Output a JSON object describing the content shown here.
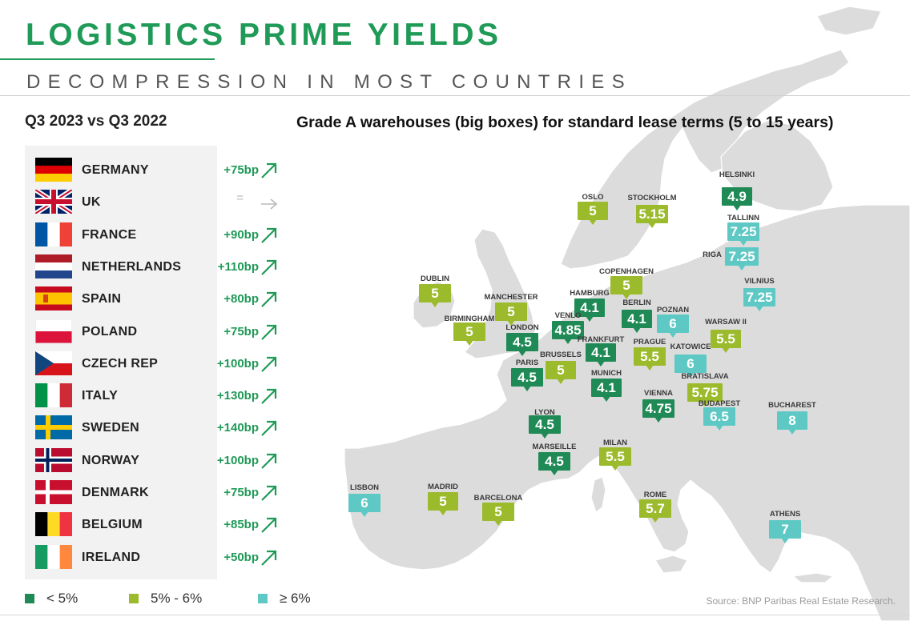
{
  "header": {
    "title": "LOGISTICS PRIME YIELDS",
    "subtitle": "DECOMPRESSION IN MOST COUNTRIES",
    "period": "Q3 2023 vs Q3 2022",
    "map_title": "Grade A warehouses (big boxes) for standard lease terms (5 to 15 years)"
  },
  "colors": {
    "accent": "#1f9a57",
    "below_5": "#1f8a55",
    "between_5_6": "#9bbb2c",
    "above_6": "#5ec9c4",
    "flat": "#b8b8b8"
  },
  "countries": [
    {
      "name": "GERMANY",
      "change": "+75bp",
      "icon": "arrow-up-right-icon",
      "flag": "germany-flag-icon"
    },
    {
      "name": "UK",
      "change": "=",
      "icon": "arrow-right-icon",
      "flag": "uk-flag-icon"
    },
    {
      "name": "FRANCE",
      "change": "+90bp",
      "icon": "arrow-up-right-icon",
      "flag": "france-flag-icon"
    },
    {
      "name": "NETHERLANDS",
      "change": "+110bp",
      "icon": "arrow-up-right-icon",
      "flag": "netherlands-flag-icon"
    },
    {
      "name": "SPAIN",
      "change": "+80bp",
      "icon": "arrow-up-right-icon",
      "flag": "spain-flag-icon"
    },
    {
      "name": "POLAND",
      "change": "+75bp",
      "icon": "arrow-up-right-icon",
      "flag": "poland-flag-icon"
    },
    {
      "name": "CZECH REP",
      "change": "+100bp",
      "icon": "arrow-up-right-icon",
      "flag": "czech-flag-icon"
    },
    {
      "name": "ITALY",
      "change": "+130bp",
      "icon": "arrow-up-right-icon",
      "flag": "italy-flag-icon"
    },
    {
      "name": "SWEDEN",
      "change": "+140bp",
      "icon": "arrow-up-right-icon",
      "flag": "sweden-flag-icon"
    },
    {
      "name": "NORWAY",
      "change": "+100bp",
      "icon": "arrow-up-right-icon",
      "flag": "norway-flag-icon"
    },
    {
      "name": "DENMARK",
      "change": "+75bp",
      "icon": "arrow-up-right-icon",
      "flag": "denmark-flag-icon"
    },
    {
      "name": "BELGIUM",
      "change": "+85bp",
      "icon": "arrow-up-right-icon",
      "flag": "belgium-flag-icon"
    },
    {
      "name": "IRELAND",
      "change": "+50bp",
      "icon": "arrow-up-right-icon",
      "flag": "ireland-flag-icon"
    }
  ],
  "cities": [
    {
      "name": "HELSINKI",
      "yield": "4.9",
      "band": "green"
    },
    {
      "name": "OSLO",
      "yield": "5",
      "band": "lime"
    },
    {
      "name": "STOCKHOLM",
      "yield": "5.15",
      "band": "lime"
    },
    {
      "name": "TALLINN",
      "yield": "7.25",
      "band": "teal"
    },
    {
      "name": "RIGA",
      "yield": "7.25",
      "band": "teal"
    },
    {
      "name": "VILNIUS",
      "yield": "7.25",
      "band": "teal"
    },
    {
      "name": "DUBLIN",
      "yield": "5",
      "band": "lime"
    },
    {
      "name": "COPENHAGEN",
      "yield": "5",
      "band": "lime"
    },
    {
      "name": "MANCHESTER",
      "yield": "5",
      "band": "lime"
    },
    {
      "name": "HAMBURG",
      "yield": "4.1",
      "band": "green"
    },
    {
      "name": "BERLIN",
      "yield": "4.1",
      "band": "green"
    },
    {
      "name": "POZNAN",
      "yield": "6",
      "band": "teal"
    },
    {
      "name": "BIRMINGHAM",
      "yield": "5",
      "band": "lime"
    },
    {
      "name": "VENLO",
      "yield": "4.85",
      "band": "green"
    },
    {
      "name": "LONDON",
      "yield": "4.5",
      "band": "green"
    },
    {
      "name": "WARSAW II",
      "yield": "5.5",
      "band": "lime"
    },
    {
      "name": "FRANKFURT",
      "yield": "4.1",
      "band": "green"
    },
    {
      "name": "PRAGUE",
      "yield": "5.5",
      "band": "lime"
    },
    {
      "name": "KATOWICE",
      "yield": "6",
      "band": "teal"
    },
    {
      "name": "BRUSSELS",
      "yield": "5",
      "band": "lime"
    },
    {
      "name": "PARIS",
      "yield": "4.5",
      "band": "green"
    },
    {
      "name": "MUNICH",
      "yield": "4.1",
      "band": "green"
    },
    {
      "name": "BRATISLAVA",
      "yield": "5.75",
      "band": "lime"
    },
    {
      "name": "VIENNA",
      "yield": "4.75",
      "band": "green"
    },
    {
      "name": "BUDAPEST",
      "yield": "6.5",
      "band": "teal"
    },
    {
      "name": "BUCHAREST",
      "yield": "8",
      "band": "teal"
    },
    {
      "name": "LYON",
      "yield": "4.5",
      "band": "green"
    },
    {
      "name": "MILAN",
      "yield": "5.5",
      "band": "lime"
    },
    {
      "name": "MARSEILLE",
      "yield": "4.5",
      "band": "green"
    },
    {
      "name": "LISBON",
      "yield": "6",
      "band": "teal"
    },
    {
      "name": "MADRID",
      "yield": "5",
      "band": "lime"
    },
    {
      "name": "BARCELONA",
      "yield": "5",
      "band": "lime"
    },
    {
      "name": "ROME",
      "yield": "5.7",
      "band": "lime"
    },
    {
      "name": "ATHENS",
      "yield": "7",
      "band": "teal"
    }
  ],
  "legend": [
    {
      "label": "< 5%",
      "band": "green"
    },
    {
      "label": "5% - 6%",
      "band": "lime"
    },
    {
      "label": "≥ 6%",
      "band": "teal"
    }
  ],
  "source": "Source: BNP Paribas Real Estate Research."
}
